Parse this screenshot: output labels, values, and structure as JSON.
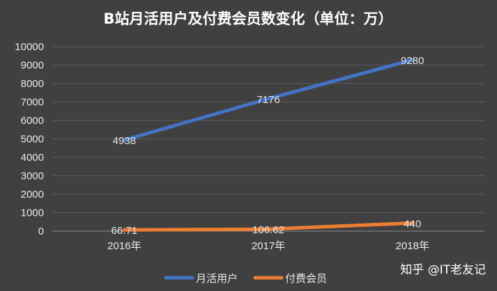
{
  "chart_data": {
    "type": "line",
    "title": "B站月活用户及付费会员数变化（单位：万）",
    "categories": [
      "2016年",
      "2017年",
      "2018年"
    ],
    "series": [
      {
        "name": "月活用户",
        "values": [
          4938,
          7176,
          9280
        ],
        "labels": [
          "4938",
          "7176",
          "9280"
        ],
        "color": "#4472C4"
      },
      {
        "name": "付费会员",
        "values": [
          66.71,
          106.62,
          440
        ],
        "labels": [
          "66.71",
          "106.62",
          "440"
        ],
        "color": "#ED7D31"
      }
    ],
    "ylim": [
      0,
      10000
    ],
    "yticks": [
      "0",
      "1000",
      "2000",
      "3000",
      "4000",
      "5000",
      "6000",
      "7000",
      "8000",
      "9000",
      "10000"
    ],
    "grid": true,
    "legend_position": "bottom",
    "xlabel": "",
    "ylabel": ""
  },
  "watermark": "知乎 @IT老友记"
}
